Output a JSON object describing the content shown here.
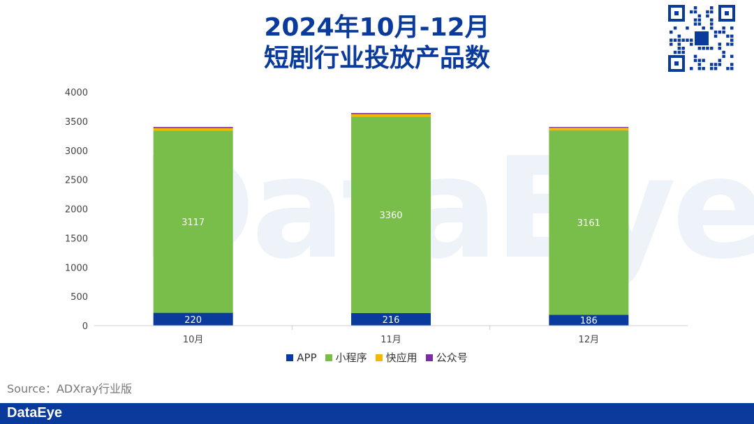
{
  "header": {
    "title_line1": "2024年10月-12月",
    "title_line2": "短剧行业投放产品数"
  },
  "watermark": "DataEye",
  "source": "Source：ADXray行业版",
  "brand": "DataEye",
  "colors": {
    "app": "#0a3a9c",
    "mini": "#79bd4a",
    "quick": "#f5b800",
    "official": "#7a2fa0",
    "brand": "#0a3a9c"
  },
  "icons": {
    "qr": "qr-code-icon"
  },
  "chart_data": {
    "type": "bar",
    "stacked": true,
    "categories": [
      "10月",
      "11月",
      "12月"
    ],
    "series": [
      {
        "name": "APP",
        "values": [
          220,
          216,
          186
        ],
        "labels": [
          "220",
          "216",
          "186"
        ]
      },
      {
        "name": "小程序",
        "values": [
          3117,
          3360,
          3161
        ],
        "labels": [
          "3117",
          "3360",
          "3161"
        ]
      },
      {
        "name": "快应用",
        "values": [
          45,
          45,
          40
        ]
      },
      {
        "name": "公众号",
        "values": [
          20,
          20,
          15
        ]
      }
    ],
    "yticks": [
      "0",
      "500",
      "1000",
      "1500",
      "2000",
      "2500",
      "3000",
      "3500",
      "4000"
    ],
    "ylim": [
      0,
      4000
    ],
    "grid": false,
    "legend": "bottom"
  }
}
